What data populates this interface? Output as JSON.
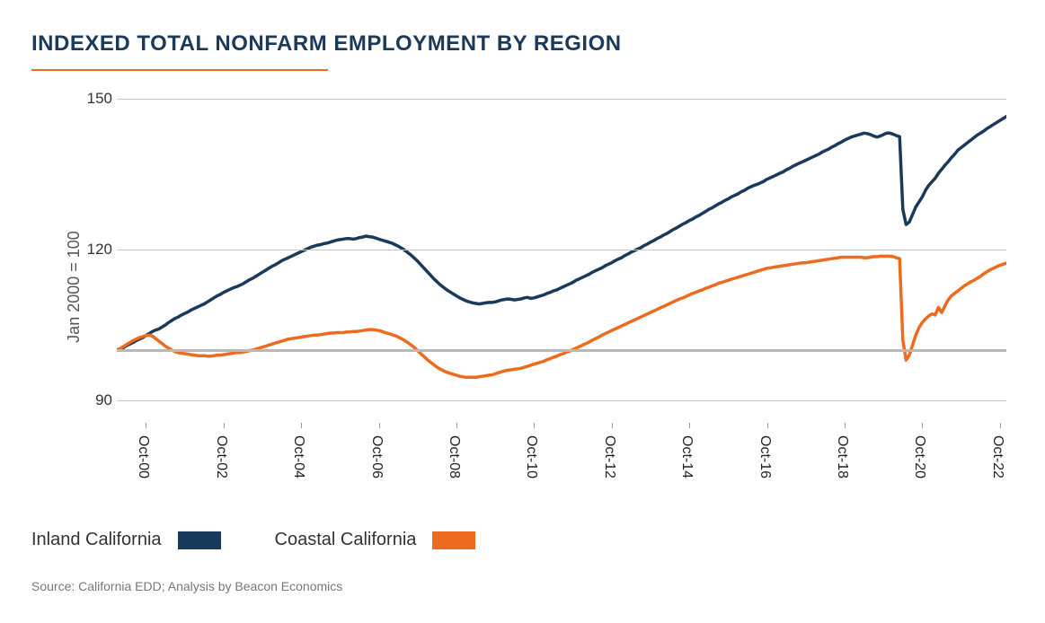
{
  "chart": {
    "type": "line",
    "title": "INDEXED TOTAL NONFARM EMPLOYMENT BY REGION",
    "title_color": "#1a3a5c",
    "title_fontsize": 24,
    "title_underline_color": "#ed6b1f",
    "background_color": "#ffffff",
    "y_axis_title": "Jan 2000 = 100",
    "y_axis_title_fontsize": 18,
    "ylim": [
      85,
      152
    ],
    "y_ticks": [
      90,
      120,
      150
    ],
    "baseline_value": 100,
    "baseline_color": "#b8b8b8",
    "gridline_color": "#c9c9c9",
    "x_ticks": [
      "Oct-00",
      "Oct-02",
      "Oct-04",
      "Oct-06",
      "Oct-08",
      "Oct-10",
      "Oct-12",
      "Oct-14",
      "Oct-16",
      "Oct-18",
      "Oct-20",
      "Oct-22"
    ],
    "x_tick_fontsize": 16,
    "y_tick_fontsize": 17,
    "x_range_count": 276,
    "line_width": 3.5,
    "series": [
      {
        "name": "Inland California",
        "color": "#1a3a5c",
        "values": [
          100,
          100.3,
          100.5,
          100.9,
          101.2,
          101.5,
          101.9,
          102.2,
          102.5,
          102.9,
          103.3,
          103.7,
          104.0,
          104.2,
          104.6,
          105.0,
          105.5,
          105.9,
          106.3,
          106.6,
          107.0,
          107.3,
          107.6,
          108.0,
          108.3,
          108.6,
          108.9,
          109.2,
          109.6,
          110.0,
          110.4,
          110.8,
          111.1,
          111.5,
          111.8,
          112.1,
          112.4,
          112.6,
          112.9,
          113.2,
          113.6,
          114.0,
          114.3,
          114.7,
          115.1,
          115.5,
          115.9,
          116.3,
          116.7,
          117.0,
          117.4,
          117.8,
          118.1,
          118.4,
          118.7,
          119.0,
          119.3,
          119.6,
          119.9,
          120.2,
          120.5,
          120.7,
          120.9,
          121.0,
          121.2,
          121.3,
          121.5,
          121.7,
          121.9,
          122.0,
          122.1,
          122.2,
          122.2,
          122.1,
          122.2,
          122.4,
          122.5,
          122.7,
          122.6,
          122.5,
          122.3,
          122.1,
          121.9,
          121.7,
          121.5,
          121.3,
          121.0,
          120.7,
          120.3,
          119.9,
          119.4,
          118.9,
          118.3,
          117.7,
          117.0,
          116.3,
          115.6,
          114.9,
          114.2,
          113.6,
          113.0,
          112.5,
          112.0,
          111.6,
          111.2,
          110.8,
          110.4,
          110.1,
          109.8,
          109.6,
          109.4,
          109.3,
          109.2,
          109.3,
          109.4,
          109.5,
          109.5,
          109.6,
          109.8,
          110.0,
          110.1,
          110.2,
          110.1,
          110.0,
          110.1,
          110.2,
          110.4,
          110.5,
          110.3,
          110.4,
          110.6,
          110.8,
          111.0,
          111.3,
          111.5,
          111.8,
          112.0,
          112.3,
          112.6,
          112.9,
          113.2,
          113.5,
          113.9,
          114.2,
          114.5,
          114.8,
          115.1,
          115.5,
          115.8,
          116.1,
          116.4,
          116.8,
          117.1,
          117.4,
          117.8,
          118.1,
          118.4,
          118.8,
          119.1,
          119.5,
          119.8,
          120.1,
          120.4,
          120.8,
          121.1,
          121.5,
          121.8,
          122.2,
          122.5,
          122.9,
          123.2,
          123.6,
          124.0,
          124.3,
          124.7,
          125.1,
          125.4,
          125.8,
          126.1,
          126.5,
          126.8,
          127.2,
          127.6,
          128.0,
          128.3,
          128.7,
          129.1,
          129.4,
          129.8,
          130.1,
          130.5,
          130.8,
          131.1,
          131.5,
          131.8,
          132.2,
          132.5,
          132.8,
          133.0,
          133.3,
          133.6,
          134.0,
          134.3,
          134.6,
          134.9,
          135.2,
          135.5,
          135.9,
          136.2,
          136.6,
          136.9,
          137.2,
          137.5,
          137.8,
          138.1,
          138.4,
          138.7,
          139.0,
          139.4,
          139.7,
          140.0,
          140.4,
          140.7,
          141.1,
          141.4,
          141.8,
          142.1,
          142.4,
          142.6,
          142.8,
          143.0,
          143.2,
          143.1,
          142.9,
          142.6,
          142.4,
          142.6,
          142.9,
          143.2,
          143.2,
          143.0,
          142.7,
          142.5,
          128.0,
          125.0,
          125.5,
          127.0,
          128.5,
          129.5,
          130.5,
          131.8,
          132.8,
          133.5,
          134.2,
          135.2,
          136.0,
          136.8,
          137.5,
          138.3,
          139.0,
          139.8,
          140.3,
          140.8,
          141.3,
          141.8,
          142.3,
          142.8,
          143.2,
          143.6,
          144.1,
          144.5,
          144.9,
          145.3,
          145.7,
          146.1,
          146.5,
          146.8
        ]
      },
      {
        "name": "Coastal California",
        "color": "#ed6b1f",
        "values": [
          100,
          100.3,
          100.7,
          101.1,
          101.5,
          101.9,
          102.2,
          102.5,
          102.7,
          102.9,
          103.0,
          102.8,
          102.3,
          101.8,
          101.3,
          100.8,
          100.4,
          100.0,
          99.7,
          99.5,
          99.4,
          99.3,
          99.2,
          99.1,
          99.0,
          98.9,
          98.9,
          98.9,
          98.8,
          98.8,
          98.9,
          99.0,
          99.0,
          99.1,
          99.2,
          99.3,
          99.4,
          99.5,
          99.5,
          99.6,
          99.7,
          99.9,
          100.0,
          100.2,
          100.4,
          100.6,
          100.8,
          101.0,
          101.2,
          101.4,
          101.6,
          101.8,
          102.0,
          102.2,
          102.3,
          102.4,
          102.5,
          102.6,
          102.7,
          102.8,
          102.9,
          103.0,
          103.0,
          103.1,
          103.2,
          103.3,
          103.4,
          103.4,
          103.5,
          103.5,
          103.5,
          103.6,
          103.6,
          103.7,
          103.7,
          103.8,
          103.9,
          104.0,
          104.1,
          104.1,
          104.0,
          103.9,
          103.7,
          103.5,
          103.3,
          103.1,
          102.9,
          102.6,
          102.3,
          101.9,
          101.5,
          101.0,
          100.5,
          99.9,
          99.3,
          98.7,
          98.1,
          97.6,
          97.1,
          96.6,
          96.2,
          95.9,
          95.6,
          95.4,
          95.2,
          95.0,
          94.8,
          94.7,
          94.6,
          94.6,
          94.6,
          94.6,
          94.7,
          94.8,
          94.9,
          95.0,
          95.1,
          95.3,
          95.5,
          95.7,
          95.9,
          96.0,
          96.1,
          96.2,
          96.3,
          96.4,
          96.6,
          96.8,
          97.0,
          97.2,
          97.4,
          97.6,
          97.8,
          98.1,
          98.3,
          98.6,
          98.8,
          99.1,
          99.3,
          99.6,
          99.8,
          100.1,
          100.4,
          100.7,
          101.0,
          101.3,
          101.6,
          102.0,
          102.3,
          102.6,
          103.0,
          103.3,
          103.6,
          103.9,
          104.2,
          104.5,
          104.8,
          105.1,
          105.4,
          105.7,
          106.0,
          106.3,
          106.6,
          106.9,
          107.2,
          107.5,
          107.8,
          108.1,
          108.4,
          108.7,
          109.0,
          109.3,
          109.6,
          109.9,
          110.2,
          110.4,
          110.7,
          111.0,
          111.3,
          111.5,
          111.8,
          112.0,
          112.3,
          112.5,
          112.8,
          113.0,
          113.3,
          113.5,
          113.7,
          113.9,
          114.1,
          114.3,
          114.5,
          114.7,
          114.9,
          115.1,
          115.3,
          115.5,
          115.7,
          115.9,
          116.1,
          116.3,
          116.4,
          116.5,
          116.6,
          116.7,
          116.8,
          116.9,
          117.0,
          117.1,
          117.2,
          117.3,
          117.4,
          117.4,
          117.5,
          117.6,
          117.7,
          117.8,
          117.9,
          118.0,
          118.1,
          118.2,
          118.3,
          118.4,
          118.5,
          118.5,
          118.5,
          118.5,
          118.5,
          118.5,
          118.5,
          118.4,
          118.4,
          118.5,
          118.6,
          118.6,
          118.7,
          118.7,
          118.7,
          118.7,
          118.6,
          118.4,
          118.2,
          102.0,
          98.0,
          99.0,
          101.0,
          103.0,
          104.5,
          105.5,
          106.2,
          106.8,
          107.2,
          107.0,
          108.5,
          107.5,
          108.8,
          110.0,
          110.8,
          111.3,
          111.8,
          112.3,
          112.8,
          113.2,
          113.6,
          113.9,
          114.3,
          114.7,
          115.2,
          115.6,
          116.0,
          116.3,
          116.6,
          116.9,
          117.1,
          117.3,
          117.5
        ]
      }
    ],
    "legend_fontsize": 20,
    "source": "Source: California EDD; Analysis by Beacon Economics",
    "source_fontsize": 14,
    "source_color": "#777777"
  }
}
